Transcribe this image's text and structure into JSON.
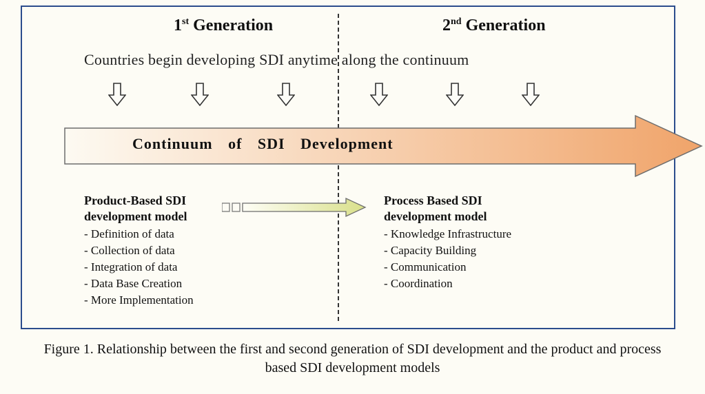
{
  "type": "infographic",
  "frame": {
    "border_color": "#2b4c8c",
    "border_width": 2,
    "bg_color": "#fdfcf5"
  },
  "gen1": {
    "num": "1",
    "ord": "st",
    "word": "Generation"
  },
  "gen2": {
    "num": "2",
    "ord": "nd",
    "word": "Generation"
  },
  "subtitle": "Countries begin developing SDI anytime along the continuum",
  "small_arrows": {
    "count": 6,
    "x_positions": [
      125,
      245,
      370,
      505,
      615,
      725
    ],
    "stroke": "#333333",
    "fill": "#fdfdf8"
  },
  "big_arrow": {
    "gradient_start": "#fdfaf2",
    "gradient_end": "#f0a46a",
    "stroke": "#6d6d6d",
    "text": "Continuum    of    SDI    Development"
  },
  "trans_arrow": {
    "box_stroke": "#7a7a7a",
    "arrow_fill_start": "#fefef6",
    "arrow_fill_end": "#d9e08a",
    "arrow_stroke": "#6d6d6d"
  },
  "left_box": {
    "title1": "Product-Based SDI",
    "title2": "development model",
    "items": [
      "- Definition of data",
      "- Collection of data",
      "- Integration of data",
      "- Data Base Creation",
      "- More Implementation"
    ]
  },
  "right_box": {
    "title1": "Process Based SDI",
    "title2": "development model",
    "items": [
      "- Knowledge Infrastructure",
      "- Capacity Building",
      "- Communication",
      "- Coordination"
    ]
  },
  "caption": "Figure 1. Relationship between the first and second generation of SDI development and the product and process based SDI development models",
  "fonts": {
    "family": "Times New Roman",
    "heading_pt": 24,
    "body_pt": 18,
    "caption_pt": 20
  }
}
